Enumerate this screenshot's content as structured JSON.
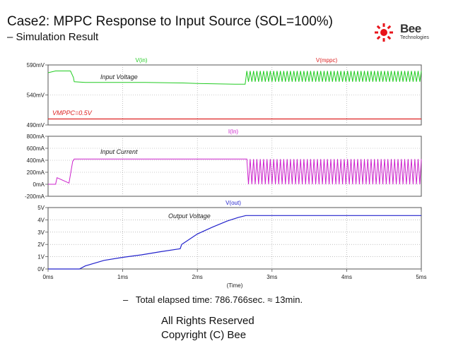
{
  "header": {
    "title": "Case2: MPPC Response to Input Source (SOL=100%)",
    "subtitle": "– Simulation Result"
  },
  "logo": {
    "word": "Bee",
    "tagline": "Technologies",
    "colors": {
      "red": "#e8141b",
      "text": "#333333"
    }
  },
  "footer": {
    "bullet": "–",
    "elapsed": "Total elapsed time: 786.766sec. ≈ 13min.",
    "rights": "All Rights Reserved",
    "copyright": "Copyright (C) Bee"
  },
  "chart_data": [
    {
      "type": "line",
      "legend": [
        "V(in)",
        "V(mppc)"
      ],
      "annotation": "Input Voltage",
      "ref_label": "VMPPC=0.5V",
      "xlim": [
        0,
        5
      ],
      "ylim": [
        490,
        590
      ],
      "yticks": [
        "590mV",
        "540mV",
        "490mV"
      ],
      "series": [
        {
          "name": "V(in)",
          "color": "#22cc22",
          "x": [
            0,
            0.1,
            0.3,
            0.34,
            0.35,
            0.5,
            1.0,
            1.3,
            1.8,
            2.0,
            2.5,
            2.64
          ],
          "values": [
            577,
            580,
            580,
            569,
            562,
            561,
            561,
            561,
            560,
            559,
            558,
            558
          ],
          "ripple_from": 2.64,
          "ripple_low": 562,
          "ripple_high": 580,
          "ripple_period": 0.045
        },
        {
          "name": "V(mppc)",
          "color": "#dd2222",
          "x": [
            0,
            5
          ],
          "values": [
            500,
            500
          ]
        }
      ]
    },
    {
      "type": "line",
      "legend": [
        "I(In)"
      ],
      "annotation": "Input Current",
      "xlim": [
        0,
        5
      ],
      "ylim": [
        -200,
        800
      ],
      "yticks": [
        "800mA",
        "600mA",
        "400mA",
        "200mA",
        "0mA",
        "-200mA"
      ],
      "series": [
        {
          "name": "I(In)",
          "color": "#cc22cc",
          "x": [
            0,
            0.1,
            0.12,
            0.28,
            0.33,
            0.35,
            1.0,
            2.0,
            2.64
          ],
          "values": [
            0,
            0,
            110,
            20,
            380,
            420,
            420,
            420,
            420
          ],
          "ripple_from": 2.64,
          "ripple_low": 0,
          "ripple_high": 420,
          "ripple_period": 0.045
        }
      ]
    },
    {
      "type": "line",
      "legend": [
        "V(out)"
      ],
      "annotation": "Output Voltage",
      "xlim": [
        0,
        5
      ],
      "ylim": [
        0,
        5
      ],
      "yticks": [
        "5V",
        "4V",
        "3V",
        "2V",
        "1V",
        "0V"
      ],
      "xticks": [
        "0ms",
        "1ms",
        "2ms",
        "3ms",
        "4ms",
        "5ms"
      ],
      "xlabel": "(Time)",
      "series": [
        {
          "name": "V(out)",
          "color": "#2222cc",
          "x": [
            0,
            0.42,
            0.5,
            0.75,
            1.0,
            1.25,
            1.5,
            1.77,
            1.79,
            2.0,
            2.2,
            2.4,
            2.55,
            2.65,
            3.0,
            4.0,
            5.0
          ],
          "values": [
            0,
            0,
            0.25,
            0.7,
            0.95,
            1.15,
            1.4,
            1.65,
            2.0,
            2.85,
            3.4,
            3.9,
            4.2,
            4.35,
            4.35,
            4.35,
            4.35
          ]
        }
      ]
    }
  ]
}
